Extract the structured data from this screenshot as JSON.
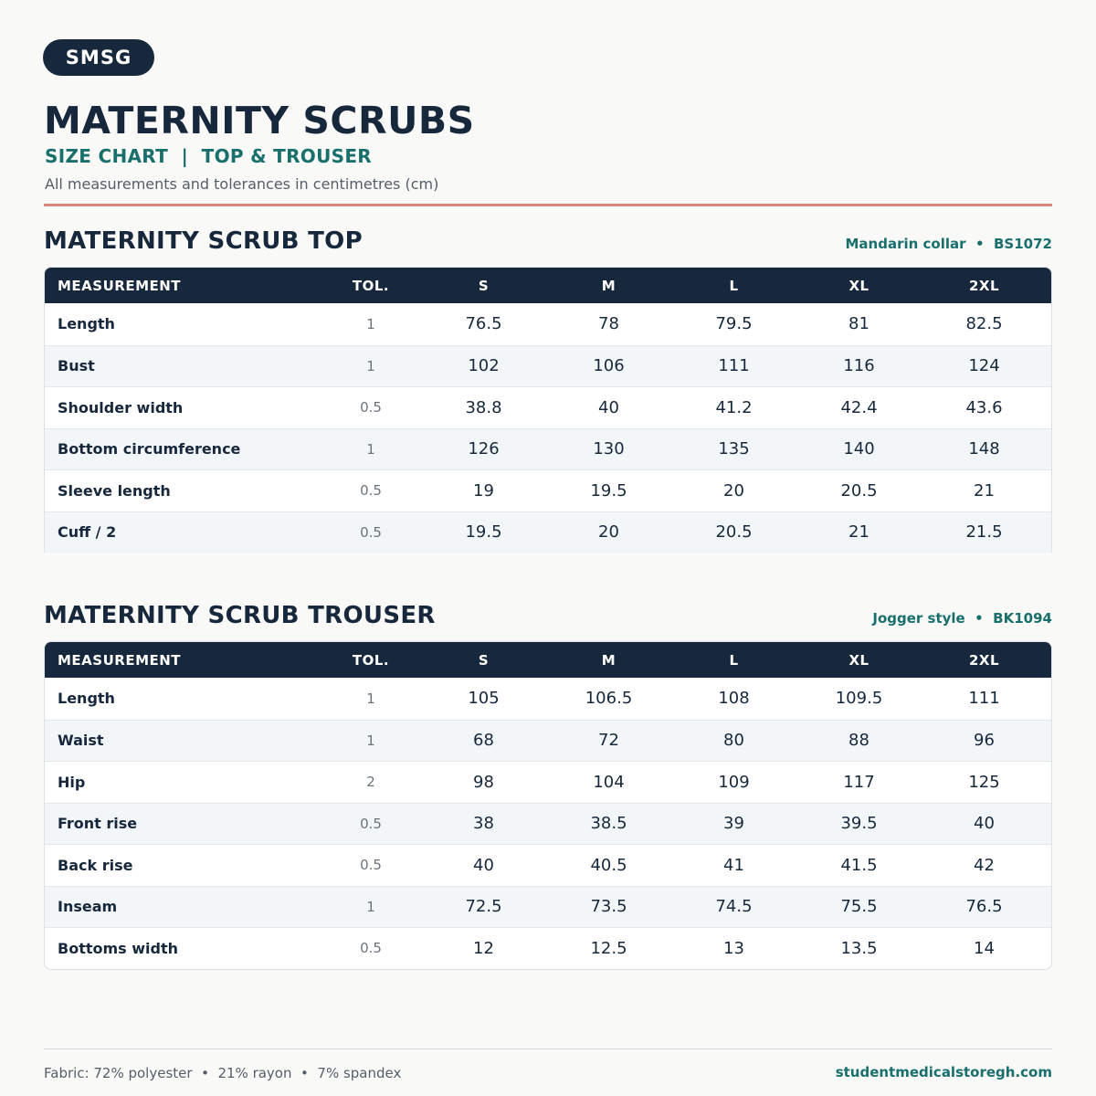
{
  "brand": "SMSG",
  "title": "MATERNITY SCRUBS",
  "subtitle": "SIZE CHART  |  TOP & TROUSER",
  "note": "All measurements and tolerances in centimetres (cm)",
  "columns": {
    "measurement": "MEASUREMENT",
    "tol": "TOL.",
    "sizes": [
      "S",
      "M",
      "L",
      "XL",
      "2XL"
    ]
  },
  "top": {
    "title": "MATERNITY SCRUB TOP",
    "meta": "Mandarin collar  •  BS1072",
    "rows": [
      {
        "name": "Length",
        "tol": "1",
        "values": [
          "76.5",
          "78",
          "79.5",
          "81",
          "82.5"
        ]
      },
      {
        "name": "Bust",
        "tol": "1",
        "values": [
          "102",
          "106",
          "111",
          "116",
          "124"
        ]
      },
      {
        "name": "Shoulder width",
        "tol": "0.5",
        "values": [
          "38.8",
          "40",
          "41.2",
          "42.4",
          "43.6"
        ]
      },
      {
        "name": "Bottom circumference",
        "tol": "1",
        "values": [
          "126",
          "130",
          "135",
          "140",
          "148"
        ]
      },
      {
        "name": "Sleeve length",
        "tol": "0.5",
        "values": [
          "19",
          "19.5",
          "20",
          "20.5",
          "21"
        ]
      },
      {
        "name": "Cuff / 2",
        "tol": "0.5",
        "values": [
          "19.5",
          "20",
          "20.5",
          "21",
          "21.5"
        ]
      }
    ]
  },
  "trouser": {
    "title": "MATERNITY SCRUB TROUSER",
    "meta": "Jogger style  •  BK1094",
    "rows": [
      {
        "name": "Length",
        "tol": "1",
        "values": [
          "105",
          "106.5",
          "108",
          "109.5",
          "111"
        ]
      },
      {
        "name": "Waist",
        "tol": "1",
        "values": [
          "68",
          "72",
          "80",
          "88",
          "96"
        ]
      },
      {
        "name": "Hip",
        "tol": "2",
        "values": [
          "98",
          "104",
          "109",
          "117",
          "125"
        ]
      },
      {
        "name": "Front rise",
        "tol": "0.5",
        "values": [
          "38",
          "38.5",
          "39",
          "39.5",
          "40"
        ]
      },
      {
        "name": "Back rise",
        "tol": "0.5",
        "values": [
          "40",
          "40.5",
          "41",
          "41.5",
          "42"
        ]
      },
      {
        "name": "Inseam",
        "tol": "1",
        "values": [
          "72.5",
          "73.5",
          "74.5",
          "75.5",
          "76.5"
        ]
      },
      {
        "name": "Bottoms width",
        "tol": "0.5",
        "values": [
          "12",
          "12.5",
          "13",
          "13.5",
          "14"
        ]
      }
    ]
  },
  "footer": {
    "fabric": "Fabric: 72% polyester  •  21% rayon  •  7% spandex",
    "website": "studentmedicalstoregh.com"
  }
}
